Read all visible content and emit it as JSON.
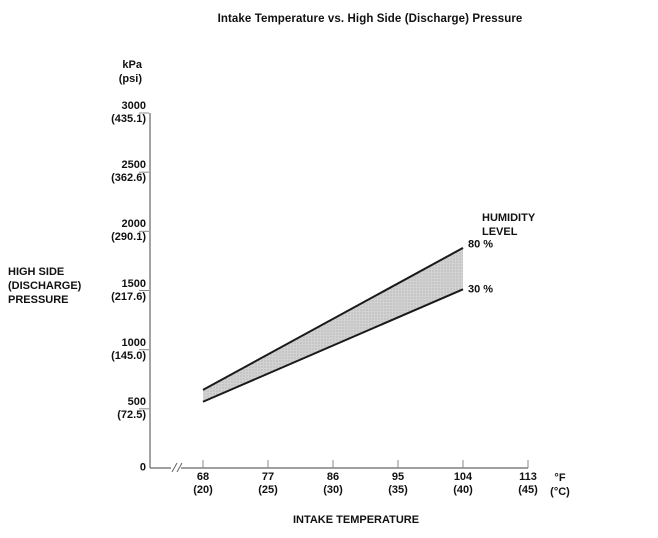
{
  "title": "Intake Temperature vs. High Side (Discharge) Pressure",
  "y_axis": {
    "unit_primary": "kPa",
    "unit_secondary": "(psi)",
    "label_lines": [
      "HIGH SIDE",
      "(DISCHARGE)",
      "PRESSURE"
    ],
    "ticks": [
      {
        "kpa": 3000,
        "label": "3000",
        "sub": "(435.1)"
      },
      {
        "kpa": 2500,
        "label": "2500",
        "sub": "(362.6)"
      },
      {
        "kpa": 2000,
        "label": "2000",
        "sub": "(290.1)"
      },
      {
        "kpa": 1500,
        "label": "1500",
        "sub": "(217.6)"
      },
      {
        "kpa": 1000,
        "label": "1000",
        "sub": "(145.0)"
      },
      {
        "kpa": 500,
        "label": "500",
        "sub": "(72.5)"
      },
      {
        "kpa": 0,
        "label": "0",
        "sub": ""
      }
    ]
  },
  "x_axis": {
    "unit_primary": "°F",
    "unit_secondary": "(°C)",
    "label": "INTAKE TEMPERATURE",
    "ticks": [
      {
        "f": 68,
        "label": "68",
        "sub": "(20)"
      },
      {
        "f": 77,
        "label": "77",
        "sub": "(25)"
      },
      {
        "f": 86,
        "label": "86",
        "sub": "(30)"
      },
      {
        "f": 95,
        "label": "95",
        "sub": "(35)"
      },
      {
        "f": 104,
        "label": "104",
        "sub": "(40)"
      },
      {
        "f": 113,
        "label": "113",
        "sub": "(45)"
      }
    ]
  },
  "legend": {
    "title_lines": [
      "HUMIDITY",
      "LEVEL"
    ],
    "upper_label": "80 %",
    "lower_label": "30 %"
  },
  "colors": {
    "background": "#ffffff",
    "text": "#111111",
    "axis": "#666666",
    "tick": "#888888",
    "band_line": "#1a1a1a",
    "band_fill": "#d2d2d2",
    "band_dot": "#9a9a9a"
  },
  "chart_data": {
    "type": "area",
    "title": "Intake Temperature vs. High Side (Discharge) Pressure",
    "xlabel": "INTAKE TEMPERATURE",
    "ylabel": "HIGH SIDE (DISCHARGE) PRESSURE",
    "x_unit": "°F (°C)",
    "y_unit": "kPa (psi)",
    "xlim_f": [
      68,
      113
    ],
    "ylim_kpa": [
      0,
      3000
    ],
    "x_axis_break_before_first_tick": true,
    "grid": false,
    "x_ticks_f_c": [
      [
        68,
        20
      ],
      [
        77,
        25
      ],
      [
        86,
        30
      ],
      [
        95,
        35
      ],
      [
        104,
        40
      ],
      [
        113,
        45
      ]
    ],
    "y_ticks_kpa_psi": [
      [
        3000,
        435.1
      ],
      [
        2500,
        362.6
      ],
      [
        2000,
        290.1
      ],
      [
        1500,
        217.6
      ],
      [
        1000,
        145.0
      ],
      [
        500,
        72.5
      ],
      [
        0,
        null
      ]
    ],
    "band": {
      "label": "HUMIDITY LEVEL",
      "fill": "stippled gray between humidity lines",
      "upper": {
        "name": "80 %",
        "points_f_kpa": [
          [
            68,
            660
          ],
          [
            104,
            1860
          ]
        ]
      },
      "lower": {
        "name": "30 %",
        "points_f_kpa": [
          [
            68,
            560
          ],
          [
            104,
            1510
          ]
        ]
      }
    }
  }
}
